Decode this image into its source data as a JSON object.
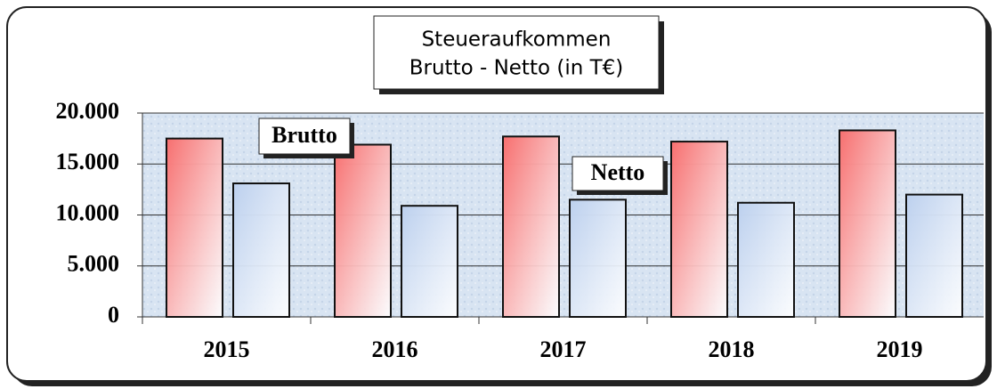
{
  "chart_data": {
    "type": "bar",
    "title": [
      "Steueraufkommen",
      "Brutto - Netto (in T€)"
    ],
    "categories": [
      "2015",
      "2016",
      "2017",
      "2018",
      "2019"
    ],
    "series": [
      {
        "name": "Brutto",
        "color": "#f76f6f",
        "values": [
          17500,
          16900,
          17700,
          17200,
          18300
        ]
      },
      {
        "name": "Netto",
        "color": "#bcd0ee",
        "values": [
          13100,
          10900,
          11500,
          11200,
          12000
        ]
      }
    ],
    "ylim": [
      0,
      20000
    ],
    "yticks": [
      0,
      {
        "value": 5000,
        "label": "5.000"
      },
      {
        "value": 10000,
        "label": "10.000"
      },
      {
        "value": 15000,
        "label": "15.000"
      },
      {
        "value": 20000,
        "label": "20.000"
      }
    ],
    "grid": true
  }
}
